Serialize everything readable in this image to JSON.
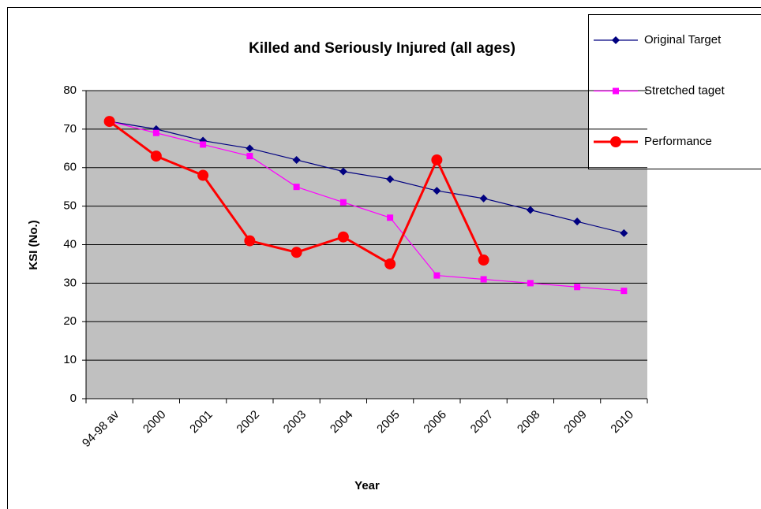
{
  "chart_data": {
    "type": "line",
    "title": "Killed and Seriously Injured (all ages)",
    "x_label": "Year",
    "y_label": "KSI (No.)",
    "categories": [
      "94-98 av",
      "2000",
      "2001",
      "2002",
      "2003",
      "2004",
      "2005",
      "2006",
      "2007",
      "2008",
      "2009",
      "2010"
    ],
    "series": [
      {
        "name": "Original Target",
        "color": "#000080",
        "marker": "diamond",
        "values": [
          72,
          70,
          67,
          65,
          62,
          59,
          57,
          54,
          52,
          49,
          46,
          43
        ]
      },
      {
        "name": "Stretched taget",
        "color": "#ff00ff",
        "marker": "square",
        "values": [
          72,
          69,
          66,
          63,
          55,
          51,
          47,
          32,
          31,
          30,
          29,
          28
        ]
      },
      {
        "name": "Performance",
        "color": "#ff0000",
        "marker": "circle",
        "values": [
          72,
          63,
          58,
          41,
          38,
          42,
          35,
          62,
          36,
          null,
          null,
          null
        ]
      }
    ],
    "ylim": [
      0,
      80
    ],
    "yticks": [
      0,
      10,
      20,
      30,
      40,
      50,
      60,
      70,
      80
    ],
    "grid": true,
    "legend": "upper right"
  }
}
